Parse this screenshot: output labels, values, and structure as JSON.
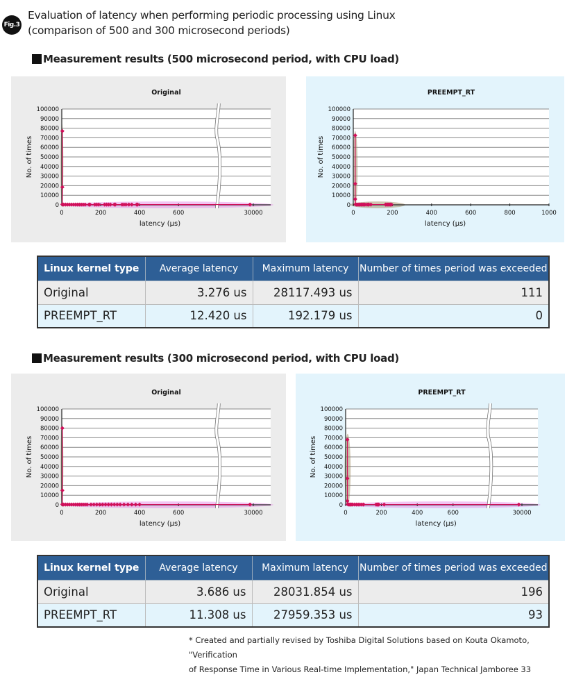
{
  "figure": {
    "badge": "Fig.3",
    "title_line1": "Evaluation of latency when performing periodic processing using Linux",
    "title_line2": "(comparison of 500 and 300 microsecond periods)"
  },
  "sections": [
    {
      "heading": "Measurement results (500 microsecond period, with CPU load)"
    },
    {
      "heading": "Measurement results (300 microsecond period, with CPU load)"
    }
  ],
  "tables": [
    {
      "headers": [
        "Linux kernel type",
        "Average latency",
        "Maximum latency",
        "Number of times period was exceeded"
      ],
      "rows": [
        [
          "Original",
          "3.276 us",
          "28117.493 us",
          "111"
        ],
        [
          "PREEMPT_RT",
          "12.420 us",
          "192.179 us",
          "0"
        ]
      ]
    },
    {
      "headers": [
        "Linux kernel type",
        "Average latency",
        "Maximum latency",
        "Number of times period was exceeded"
      ],
      "rows": [
        [
          "Original",
          "3.686 us",
          "28031.854 us",
          "196"
        ],
        [
          "PREEMPT_RT",
          "11.308 us",
          "27959.353 us",
          "93"
        ]
      ]
    }
  ],
  "footnote": {
    "line1": "* Created and partially revised by Toshiba Digital Solutions based on Kouta Okamoto, \"Verification",
    "line2": "of Response Time in Various Real-time Implementation,\" Japan Technical Jamboree 33"
  },
  "colors": {
    "marker": "#d0105a",
    "table_header": "#2e5f96",
    "panel_gray": "#ececec",
    "panel_blue": "#e3f4fc",
    "highlight_brown": "#a08c64",
    "highlight_pink": "#e68ce6"
  },
  "chart_data": [
    {
      "type": "scatter",
      "title": "Original",
      "xlabel": "latency (µs)",
      "ylabel": "No. of times",
      "ylim": [
        0,
        100000
      ],
      "yticks": [
        "0",
        "10000",
        "20000",
        "30000",
        "40000",
        "50000",
        "60000",
        "70000",
        "80000",
        "90000",
        "100000"
      ],
      "xticks": [
        0,
        200,
        400,
        600,
        30000
      ],
      "xlim": [
        0,
        800
      ],
      "axis_break": {
        "between": [
          800,
          29000
        ]
      },
      "grid": true,
      "points": [
        [
          3,
          77000
        ],
        [
          3,
          18500
        ],
        [
          3,
          500
        ],
        [
          5,
          300
        ],
        [
          10,
          300
        ],
        [
          20,
          300
        ],
        [
          30,
          300
        ],
        [
          40,
          300
        ],
        [
          50,
          300
        ],
        [
          60,
          300
        ],
        [
          70,
          300
        ],
        [
          80,
          300
        ],
        [
          90,
          300
        ],
        [
          100,
          300
        ],
        [
          110,
          300
        ],
        [
          120,
          300
        ],
        [
          140,
          300
        ],
        [
          145,
          300
        ],
        [
          170,
          300
        ],
        [
          180,
          300
        ],
        [
          190,
          300
        ],
        [
          220,
          300
        ],
        [
          230,
          300
        ],
        [
          240,
          300
        ],
        [
          250,
          300
        ],
        [
          270,
          300
        ],
        [
          275,
          300
        ],
        [
          310,
          300
        ],
        [
          320,
          300
        ],
        [
          330,
          300
        ],
        [
          345,
          300
        ],
        [
          360,
          300
        ],
        [
          385,
          300
        ],
        [
          390,
          300
        ],
        [
          29800,
          300
        ]
      ],
      "highlights": [
        {
          "color": "brown",
          "x": [
            -6,
            8
          ],
          "y": [
            -2000,
            85000
          ]
        },
        {
          "color": "pink",
          "x": [
            -10,
            31200
          ],
          "y": [
            -3500,
            3500
          ]
        }
      ]
    },
    {
      "type": "scatter",
      "title": "PREEMPT_RT",
      "xlabel": "latency (µs)",
      "ylabel": "No. of times",
      "ylim": [
        0,
        100000
      ],
      "yticks": [
        "0",
        "10000",
        "20000",
        "30000",
        "40000",
        "50000",
        "60000",
        "70000",
        "80000",
        "90000",
        "100000"
      ],
      "xticks": [
        0,
        200,
        400,
        600,
        800,
        1000
      ],
      "xlim": [
        0,
        1000
      ],
      "axis_break": null,
      "grid": true,
      "points": [
        [
          10,
          72500
        ],
        [
          10,
          22000
        ],
        [
          10,
          6000
        ],
        [
          12,
          500
        ],
        [
          15,
          300
        ],
        [
          20,
          300
        ],
        [
          25,
          300
        ],
        [
          30,
          300
        ],
        [
          35,
          300
        ],
        [
          40,
          300
        ],
        [
          45,
          300
        ],
        [
          50,
          300
        ],
        [
          55,
          300
        ],
        [
          60,
          300
        ],
        [
          70,
          300
        ],
        [
          75,
          300
        ],
        [
          80,
          300
        ],
        [
          90,
          300
        ],
        [
          165,
          300
        ],
        [
          170,
          300
        ],
        [
          175,
          300
        ],
        [
          180,
          300
        ],
        [
          185,
          300
        ],
        [
          190,
          300
        ],
        [
          195,
          300
        ]
      ],
      "highlights": [
        {
          "color": "brown",
          "x": [
            -2,
            22
          ],
          "y": [
            -1000,
            77000
          ]
        },
        {
          "color": "brown",
          "x": [
            -15,
            265
          ],
          "y": [
            -3500,
            3500
          ]
        }
      ]
    },
    {
      "type": "scatter",
      "title": "Original",
      "xlabel": "latency (µs)",
      "ylabel": "No. of times",
      "ylim": [
        0,
        100000
      ],
      "yticks": [
        "0",
        "10000",
        "20000",
        "30000",
        "40000",
        "50000",
        "60000",
        "70000",
        "80000",
        "90000",
        "100000"
      ],
      "xticks": [
        0,
        200,
        400,
        600,
        30000
      ],
      "xlim": [
        0,
        800
      ],
      "axis_break": {
        "between": [
          800,
          29000
        ]
      },
      "grid": true,
      "points": [
        [
          3,
          80000
        ],
        [
          3,
          15000
        ],
        [
          3,
          500
        ],
        [
          5,
          300
        ],
        [
          10,
          300
        ],
        [
          20,
          300
        ],
        [
          30,
          300
        ],
        [
          40,
          300
        ],
        [
          50,
          300
        ],
        [
          60,
          300
        ],
        [
          70,
          300
        ],
        [
          80,
          300
        ],
        [
          90,
          300
        ],
        [
          100,
          300
        ],
        [
          110,
          300
        ],
        [
          120,
          300
        ],
        [
          130,
          300
        ],
        [
          150,
          300
        ],
        [
          165,
          300
        ],
        [
          180,
          300
        ],
        [
          195,
          300
        ],
        [
          210,
          300
        ],
        [
          225,
          300
        ],
        [
          240,
          300
        ],
        [
          255,
          300
        ],
        [
          270,
          300
        ],
        [
          285,
          300
        ],
        [
          300,
          300
        ],
        [
          320,
          300
        ],
        [
          340,
          300
        ],
        [
          360,
          300
        ],
        [
          380,
          300
        ],
        [
          400,
          300
        ],
        [
          29800,
          300
        ]
      ],
      "highlights": [
        {
          "color": "brown",
          "x": [
            -6,
            8
          ],
          "y": [
            -2000,
            85000
          ]
        },
        {
          "color": "pink",
          "x": [
            -10,
            31200
          ],
          "y": [
            -3500,
            3500
          ]
        }
      ]
    },
    {
      "type": "scatter",
      "title": "PREEMPT_RT",
      "xlabel": "latency (µs)",
      "ylabel": "No. of times",
      "ylim": [
        0,
        100000
      ],
      "yticks": [
        "0",
        "10000",
        "20000",
        "30000",
        "40000",
        "50000",
        "60000",
        "70000",
        "80000",
        "90000",
        "100000"
      ],
      "xticks": [
        0,
        200,
        400,
        600,
        30000
      ],
      "xlim": [
        0,
        800
      ],
      "axis_break": {
        "between": [
          800,
          29000
        ]
      },
      "grid": true,
      "points": [
        [
          10,
          68000
        ],
        [
          10,
          27500
        ],
        [
          10,
          4000
        ],
        [
          12,
          500
        ],
        [
          15,
          300
        ],
        [
          20,
          300
        ],
        [
          25,
          300
        ],
        [
          30,
          300
        ],
        [
          35,
          300
        ],
        [
          40,
          300
        ],
        [
          50,
          300
        ],
        [
          60,
          300
        ],
        [
          70,
          300
        ],
        [
          80,
          300
        ],
        [
          90,
          300
        ],
        [
          100,
          300
        ],
        [
          170,
          300
        ],
        [
          175,
          300
        ],
        [
          180,
          300
        ],
        [
          185,
          300
        ],
        [
          215,
          300
        ],
        [
          29800,
          300
        ]
      ],
      "highlights": [
        {
          "color": "brown",
          "x": [
            -6,
            28
          ],
          "y": [
            -1000,
            74000
          ]
        },
        {
          "color": "pink",
          "x": [
            -10,
            31200
          ],
          "y": [
            -3500,
            3500
          ]
        }
      ]
    }
  ]
}
